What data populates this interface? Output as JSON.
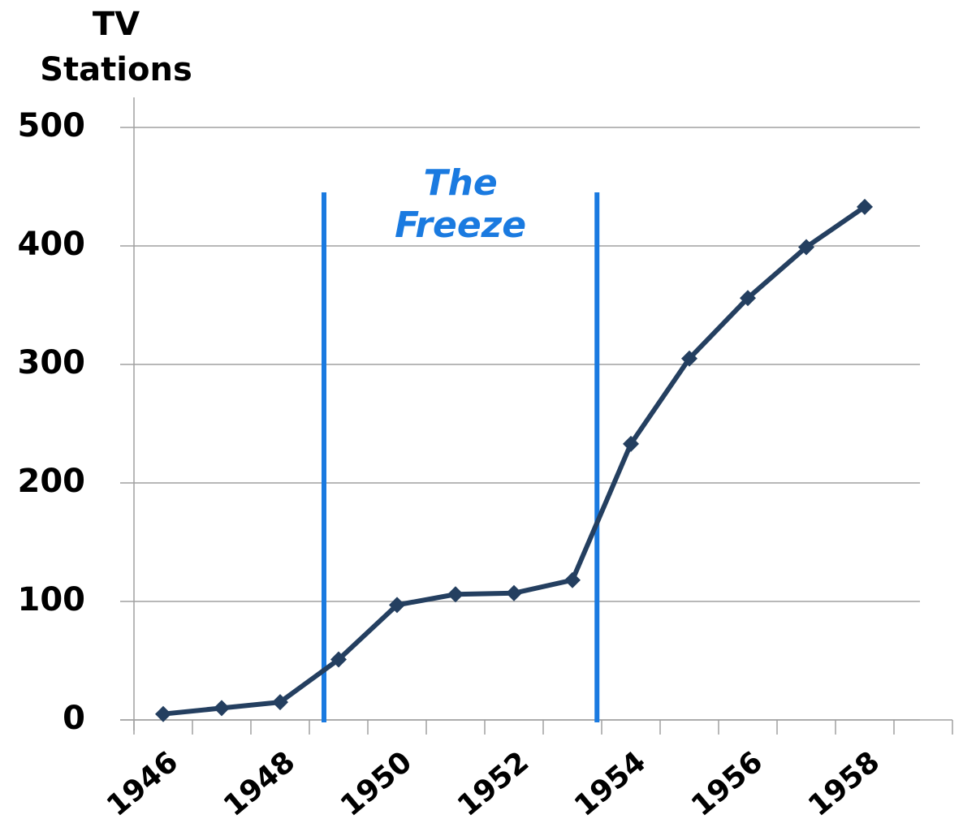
{
  "chart_data": {
    "type": "line",
    "ylabel_lines": [
      "TV",
      "Stations"
    ],
    "categories": [
      "1946",
      null,
      "1948",
      null,
      "1950",
      null,
      "1952",
      null,
      "1954",
      null,
      "1956",
      null,
      "1958",
      null
    ],
    "series": [
      {
        "name": null,
        "color": "#243f60",
        "values": [
          5,
          10,
          15,
          51,
          97,
          106,
          107,
          118,
          233,
          305,
          356,
          399,
          433,
          null
        ]
      }
    ],
    "ylim": [
      0,
      500
    ],
    "yticks": [
      0,
      100,
      200,
      300,
      400,
      500
    ],
    "grid": true,
    "annotation": {
      "lines": [
        "The",
        "Freeze"
      ],
      "color": "#1a7ae0",
      "x": [
        2.75,
        7.42
      ]
    }
  }
}
